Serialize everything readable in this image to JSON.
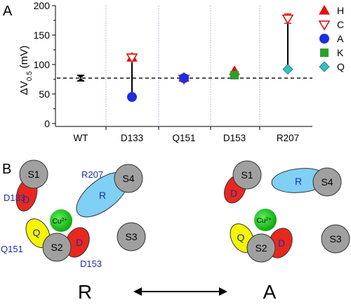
{
  "panel_a": {
    "letter": "A",
    "ylabel_main": "ΔV",
    "ylabel_sub": "0.5",
    "ylabel_unit": " (mV)",
    "legend": [
      {
        "label": "H",
        "marker": "triangle-filled",
        "color": "#e01010"
      },
      {
        "label": "C",
        "marker": "triangle-open-down",
        "color": "#e01010"
      },
      {
        "label": "A",
        "marker": "circle",
        "color": "#1a2fe0"
      },
      {
        "label": "K",
        "marker": "square",
        "color": "#2aa02a"
      },
      {
        "label": "Q",
        "marker": "diamond",
        "color": "#30c0c0"
      }
    ]
  },
  "chart_data": {
    "type": "scatter",
    "categories": [
      "WT",
      "D133",
      "Q151",
      "D153",
      "R207"
    ],
    "yticks": [
      "0",
      "50",
      "100",
      "150",
      "200"
    ],
    "ylim": [
      -5,
      200
    ],
    "reference_line": 77,
    "series": [
      {
        "name": "WT",
        "marker": "hourglass",
        "color": "#000000",
        "points": [
          {
            "cat": "WT",
            "y": 77,
            "err": 5
          }
        ]
      },
      {
        "name": "H",
        "marker": "triangle-filled",
        "color": "#e01010",
        "points": [
          {
            "cat": "D133",
            "y": 112
          },
          {
            "cat": "Q151",
            "y": 78
          },
          {
            "cat": "D153",
            "y": 89
          }
        ]
      },
      {
        "name": "C",
        "marker": "triangle-open-down",
        "color": "#e01010",
        "points": [
          {
            "cat": "D133",
            "y": 112,
            "err": 6
          },
          {
            "cat": "Q151",
            "y": 76
          },
          {
            "cat": "R207",
            "y": 178,
            "err": 8
          }
        ]
      },
      {
        "name": "A",
        "marker": "circle",
        "color": "#1a2fe0",
        "points": [
          {
            "cat": "D133",
            "y": 45
          },
          {
            "cat": "Q151",
            "y": 77
          }
        ]
      },
      {
        "name": "K",
        "marker": "square",
        "color": "#2aa02a",
        "points": [
          {
            "cat": "D153",
            "y": 82
          }
        ]
      },
      {
        "name": "Q",
        "marker": "diamond",
        "color": "#30c0c0",
        "points": [
          {
            "cat": "R207",
            "y": 92
          }
        ]
      }
    ],
    "ranges": [
      {
        "cat": "D133",
        "low": 45,
        "high": 112
      },
      {
        "cat": "R207",
        "low": 92,
        "high": 178
      }
    ]
  },
  "panel_b": {
    "letter": "B",
    "state_left": "R",
    "state_right": "A",
    "s1": "S1",
    "s2": "S2",
    "s3": "S3",
    "s4": "S4",
    "d": "D",
    "q": "Q",
    "r": "R",
    "cu": "Cu",
    "cu_sup": "2+",
    "res_d133": "D133",
    "res_r207": "R207",
    "res_q151": "Q151",
    "res_d153": "D153",
    "colors": {
      "gray": "#a0a0a0",
      "red": "#e8281e",
      "yellow": "#f5f500",
      "cyan": "#7fd0f4",
      "green": "#22c822",
      "label_blue": "#1a2fa8"
    }
  }
}
